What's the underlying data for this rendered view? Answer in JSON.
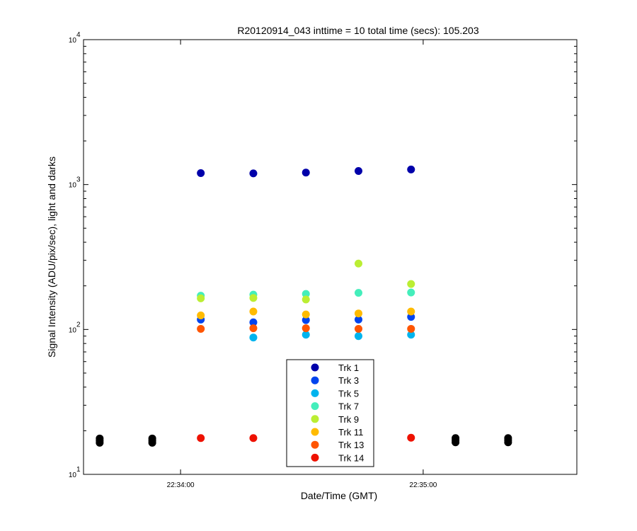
{
  "chart_data": {
    "type": "scatter",
    "title": "R20120914_043 inttime = 10 total time (secs): 105.203",
    "xlabel": "Date/Time (GMT)",
    "ylabel": "Signal Intensity (ADU/pix/sec), light and darks",
    "yscale": "log",
    "ylim": [
      10,
      10000
    ],
    "y_ticks": [
      {
        "base": "10",
        "exp": "1",
        "value": 10
      },
      {
        "base": "10",
        "exp": "2",
        "value": 100
      },
      {
        "base": "10",
        "exp": "3",
        "value": 1000
      },
      {
        "base": "10",
        "exp": "4",
        "value": 10000
      }
    ],
    "xlim": [
      "22:33:36",
      "22:35:38"
    ],
    "x_ticks": [
      "22:34:00",
      "22:35:00"
    ],
    "grid": false,
    "legend_position": "bottom-center",
    "series": [
      {
        "name": "Trk 1",
        "color": "#0000aa",
        "x": [
          "22:34:05",
          "22:34:18",
          "22:34:31",
          "22:34:44",
          "22:34:57"
        ],
        "y": [
          1200,
          1195,
          1210,
          1240,
          1270
        ]
      },
      {
        "name": "Trk 3",
        "color": "#0044ee",
        "x": [
          "22:34:05",
          "22:34:18",
          "22:34:31",
          "22:34:44",
          "22:34:57"
        ],
        "y": [
          117,
          112,
          116,
          117,
          122
        ]
      },
      {
        "name": "Trk 5",
        "color": "#00b4ee",
        "x": [
          "22:34:18",
          "22:34:31",
          "22:34:44",
          "22:34:57"
        ],
        "y": [
          88,
          92,
          90,
          92
        ]
      },
      {
        "name": "Trk 7",
        "color": "#44eebb",
        "x": [
          "22:34:05",
          "22:34:18",
          "22:34:31",
          "22:34:44",
          "22:34:57"
        ],
        "y": [
          171,
          174,
          176,
          179,
          180
        ]
      },
      {
        "name": "Trk 9",
        "color": "#bbee33",
        "x": [
          "22:34:05",
          "22:34:18",
          "22:34:31",
          "22:34:44",
          "22:34:57"
        ],
        "y": [
          164,
          165,
          161,
          285,
          206
        ]
      },
      {
        "name": "Trk 11",
        "color": "#ffbb00",
        "x": [
          "22:34:05",
          "22:34:18",
          "22:34:31",
          "22:34:44",
          "22:34:57"
        ],
        "y": [
          125,
          133,
          127,
          129,
          133
        ]
      },
      {
        "name": "Trk 13",
        "color": "#ff5500",
        "x": [
          "22:34:05",
          "22:34:18",
          "22:34:31",
          "22:34:44",
          "22:34:57"
        ],
        "y": [
          101,
          102,
          102,
          101,
          101
        ]
      },
      {
        "name": "Trk 14",
        "color": "#ee1100",
        "x": [
          "22:34:05",
          "22:34:18",
          "22:34:57"
        ],
        "y": [
          17.8,
          17.8,
          17.9
        ]
      }
    ],
    "dark_series": {
      "color": "#000000",
      "x": [
        "22:33:40",
        "22:33:53",
        "22:35:08",
        "22:35:21"
      ],
      "y": [
        17.1,
        17.1,
        17.2,
        17.2
      ]
    }
  }
}
